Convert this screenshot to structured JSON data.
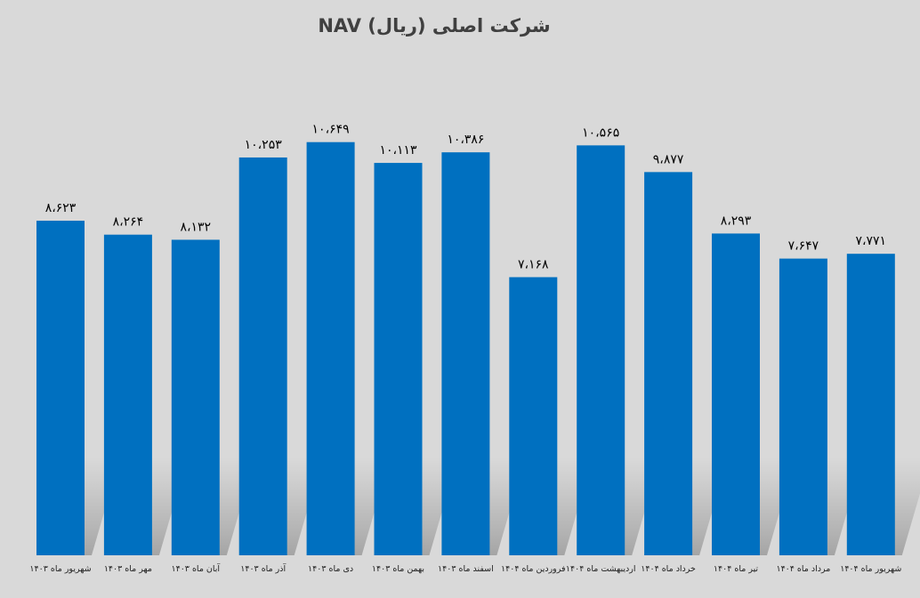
{
  "chart_data": {
    "type": "bar",
    "title": "NAV شرکت اصلی (ریال)",
    "xlabel": "",
    "ylabel": "",
    "ylim": [
      0,
      12500
    ],
    "grid": false,
    "legend": "none",
    "bar_color": "#0070c0",
    "background": "#d9d9d9",
    "categories": [
      "شهریور ماه ۱۴۰۳",
      "مهر ماه ۱۴۰۳",
      "آبان ماه ۱۴۰۳",
      "آذر ماه ۱۴۰۳",
      "دی ماه ۱۴۰۳",
      "بهمن ماه ۱۴۰۳",
      "اسفند ماه ۱۴۰۳",
      "فروردین ماه ۱۴۰۴",
      "اردیبهشت ماه ۱۴۰۴",
      "خرداد ماه ۱۴۰۴",
      "تیر ماه ۱۴۰۴",
      "مرداد ماه ۱۴۰۴",
      "شهریور ماه ۱۴۰۴"
    ],
    "values": [
      8623,
      8264,
      8132,
      10253,
      10649,
      10113,
      10386,
      7168,
      10565,
      9877,
      8293,
      7647,
      7771
    ],
    "data_labels": [
      "۸،۶۲۳",
      "۸،۲۶۴",
      "۸،۱۳۲",
      "۱۰،۲۵۳",
      "۱۰،۶۴۹",
      "۱۰،۱۱۳",
      "۱۰،۳۸۶",
      "۷،۱۶۸",
      "۱۰،۵۶۵",
      "۹،۸۷۷",
      "۸،۲۹۳",
      "۷،۶۴۷",
      "۷،۷۷۱"
    ]
  }
}
